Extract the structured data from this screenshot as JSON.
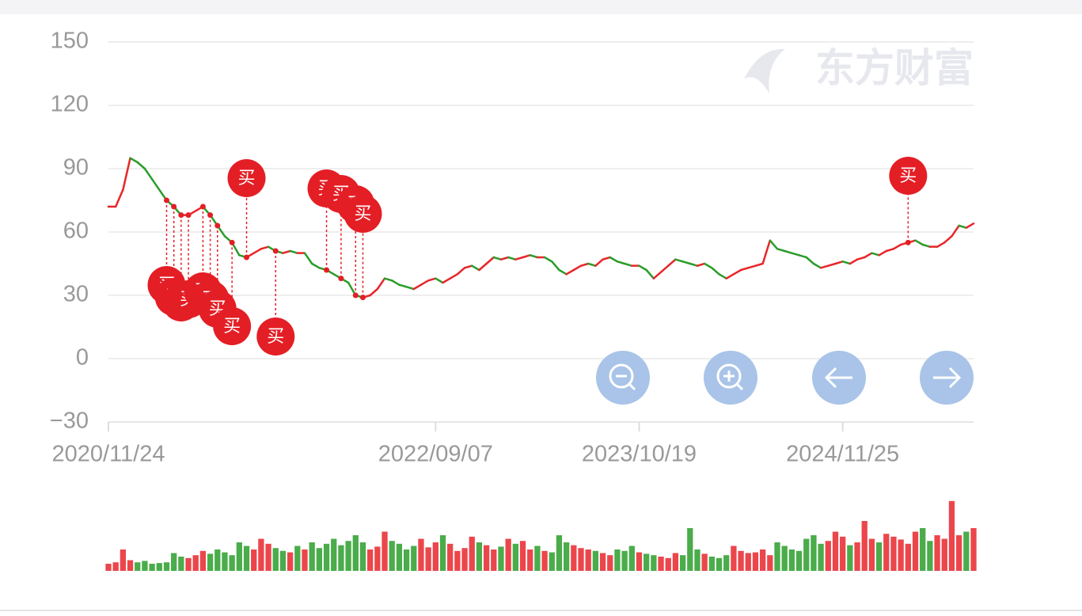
{
  "chart_data": {
    "type": "line",
    "watermark": "东方财富",
    "categories": [
      "2020/11/24",
      null,
      null,
      null,
      null,
      null,
      null,
      null,
      null,
      null,
      null,
      null,
      null,
      null,
      null,
      null,
      null,
      null,
      null,
      null,
      null,
      null,
      null,
      null,
      null,
      null,
      null,
      null,
      null,
      null,
      null,
      null,
      null,
      null,
      null,
      null,
      null,
      null,
      null,
      null,
      null,
      null,
      null,
      null,
      null,
      "2022/09/07",
      null,
      null,
      null,
      null,
      null,
      null,
      null,
      null,
      null,
      null,
      null,
      null,
      null,
      null,
      null,
      null,
      null,
      null,
      null,
      null,
      null,
      null,
      null,
      null,
      null,
      null,
      null,
      "2023/10/19",
      null,
      null,
      null,
      null,
      null,
      null,
      null,
      null,
      null,
      null,
      null,
      null,
      null,
      null,
      null,
      null,
      null,
      null,
      null,
      null,
      null,
      null,
      null,
      null,
      null,
      null,
      null,
      "2024/11/25",
      null,
      null,
      null,
      null,
      null,
      null,
      null,
      null,
      null,
      null,
      null,
      null,
      null,
      null,
      null,
      null,
      null,
      null
    ],
    "values": [
      72,
      72,
      80,
      95,
      93,
      90,
      85,
      80,
      75,
      72,
      68,
      68,
      70,
      72,
      68,
      63,
      58,
      55,
      49,
      48,
      50,
      52,
      53,
      51,
      50,
      51,
      50,
      50,
      45,
      43,
      42,
      40,
      38,
      36,
      30,
      29,
      30,
      33,
      38,
      37,
      35,
      34,
      33,
      35,
      37,
      38,
      36,
      38,
      40,
      43,
      44,
      42,
      45,
      48,
      47,
      48,
      47,
      48,
      49,
      48,
      48,
      46,
      42,
      40,
      42,
      44,
      45,
      44,
      47,
      48,
      46,
      45,
      44,
      44,
      42,
      38,
      41,
      44,
      47,
      46,
      45,
      44,
      45,
      43,
      40,
      38,
      40,
      42,
      43,
      44,
      45,
      56,
      52,
      51,
      50,
      49,
      48,
      45,
      43,
      44,
      45,
      46,
      45,
      47,
      48,
      50,
      49,
      51,
      52,
      54,
      55,
      56,
      54,
      53,
      53,
      55,
      58,
      63,
      62,
      64
    ],
    "up_color": "#e8262b",
    "down_color": "#2a9d2a",
    "ylim": [
      -30,
      150
    ],
    "yticks": [
      150,
      120,
      90,
      60,
      30,
      0,
      {
        "value": -30,
        "label": "−30"
      }
    ],
    "grid": true,
    "markers": {
      "name": "买",
      "color": "#e41e25",
      "indices": [
        8,
        9,
        10,
        11,
        13,
        14,
        15,
        17,
        19,
        23,
        30,
        32,
        34,
        35,
        110
      ],
      "values": [
        75,
        72,
        68,
        68,
        72,
        68,
        63,
        55,
        48,
        51,
        42,
        38,
        30,
        29,
        55
      ]
    },
    "volume": {
      "ylim": [
        0,
        100
      ],
      "values": [
        10,
        12,
        30,
        15,
        12,
        14,
        10,
        11,
        12,
        25,
        20,
        18,
        22,
        28,
        24,
        30,
        26,
        22,
        40,
        35,
        30,
        45,
        38,
        32,
        28,
        26,
        35,
        30,
        40,
        32,
        38,
        45,
        36,
        42,
        50,
        40,
        30,
        34,
        55,
        42,
        38,
        30,
        35,
        45,
        33,
        40,
        50,
        38,
        28,
        32,
        48,
        40,
        36,
        30,
        34,
        45,
        38,
        42,
        30,
        35,
        28,
        26,
        50,
        40,
        36,
        32,
        30,
        28,
        25,
        22,
        30,
        28,
        35,
        26,
        24,
        22,
        20,
        18,
        25,
        22,
        60,
        30,
        24,
        20,
        18,
        22,
        35,
        28,
        25,
        26,
        30,
        22,
        40,
        35,
        30,
        28,
        45,
        50,
        38,
        42,
        55,
        48,
        36,
        40,
        70,
        45,
        40,
        52,
        48,
        44,
        38,
        55,
        60,
        42,
        50,
        45,
        98,
        50,
        55,
        60
      ]
    }
  }
}
